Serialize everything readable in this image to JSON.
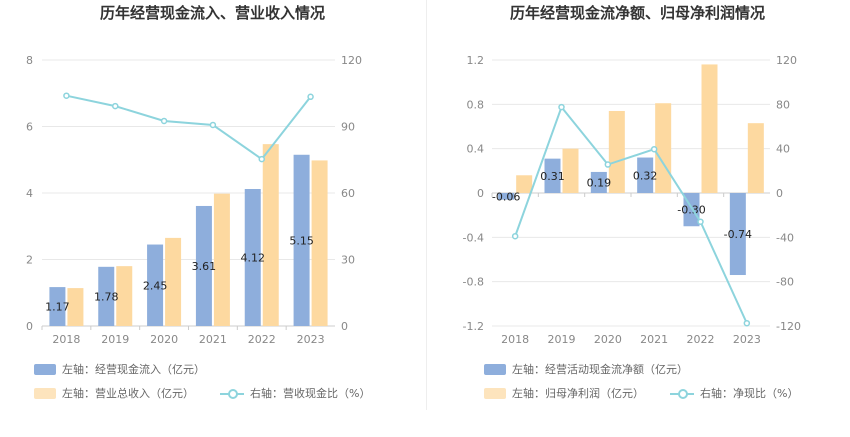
{
  "colors": {
    "bar_blue": "#8eaedc",
    "bar_orange": "#fdd9a0",
    "line": "#8dd4dd",
    "grid": "#e8e8e8",
    "axis": "#cccccc"
  },
  "chart_data": [
    {
      "type": "bar",
      "title": "历年经营现金流入、营业收入情况",
      "categories": [
        "2018",
        "2019",
        "2020",
        "2021",
        "2022",
        "2023"
      ],
      "left_axis": {
        "ticks": [
          "0",
          "2",
          "4",
          "6",
          "8"
        ],
        "ylim": [
          0,
          8
        ]
      },
      "right_axis": {
        "ticks": [
          "0",
          "30",
          "60",
          "90",
          "120"
        ],
        "ylim": [
          0,
          120
        ]
      },
      "series": [
        {
          "name": "左轴：经营现金流入（亿元）",
          "type": "bar",
          "axis": "left",
          "values": [
            1.17,
            1.78,
            2.45,
            3.61,
            4.12,
            5.15
          ],
          "labels": [
            "1.17",
            "1.78",
            "2.45",
            "3.61",
            "4.12",
            "5.15"
          ]
        },
        {
          "name": "左轴：营业总收入（亿元）",
          "type": "bar",
          "axis": "left",
          "values": [
            1.14,
            1.8,
            2.65,
            3.98,
            5.47,
            4.98
          ]
        },
        {
          "name": "右轴：营收现金比（%）",
          "type": "line",
          "axis": "right",
          "values": [
            103.9,
            99.2,
            92.5,
            90.7,
            75.3,
            103.4
          ]
        }
      ]
    },
    {
      "type": "bar",
      "title": "历年经营现金流净额、归母净利润情况",
      "categories": [
        "2018",
        "2019",
        "2020",
        "2021",
        "2022",
        "2023"
      ],
      "left_axis": {
        "ticks": [
          "-1.2",
          "-0.8",
          "-0.4",
          "0",
          "0.4",
          "0.8",
          "1.2"
        ],
        "ylim": [
          -1.2,
          1.2
        ]
      },
      "right_axis": {
        "ticks": [
          "-120",
          "-80",
          "-40",
          "0",
          "40",
          "80",
          "120"
        ],
        "ylim": [
          -120,
          120
        ]
      },
      "series": [
        {
          "name": "左轴：经营活动现金流净额（亿元）",
          "type": "bar",
          "axis": "left",
          "values": [
            -0.06,
            0.31,
            0.19,
            0.32,
            -0.3,
            -0.74
          ],
          "labels": [
            "-0.06",
            "0.31",
            "0.19",
            "0.32",
            "-0.30",
            "-0.74"
          ]
        },
        {
          "name": "左轴：归母净利润（亿元）",
          "type": "bar",
          "axis": "left",
          "values": [
            0.16,
            0.4,
            0.74,
            0.81,
            1.16,
            0.63
          ]
        },
        {
          "name": "右轴：净现比（%）",
          "type": "line",
          "axis": "right",
          "values": [
            -39.0,
            77.5,
            25.7,
            39.5,
            -25.9,
            -117.5
          ]
        }
      ]
    }
  ]
}
